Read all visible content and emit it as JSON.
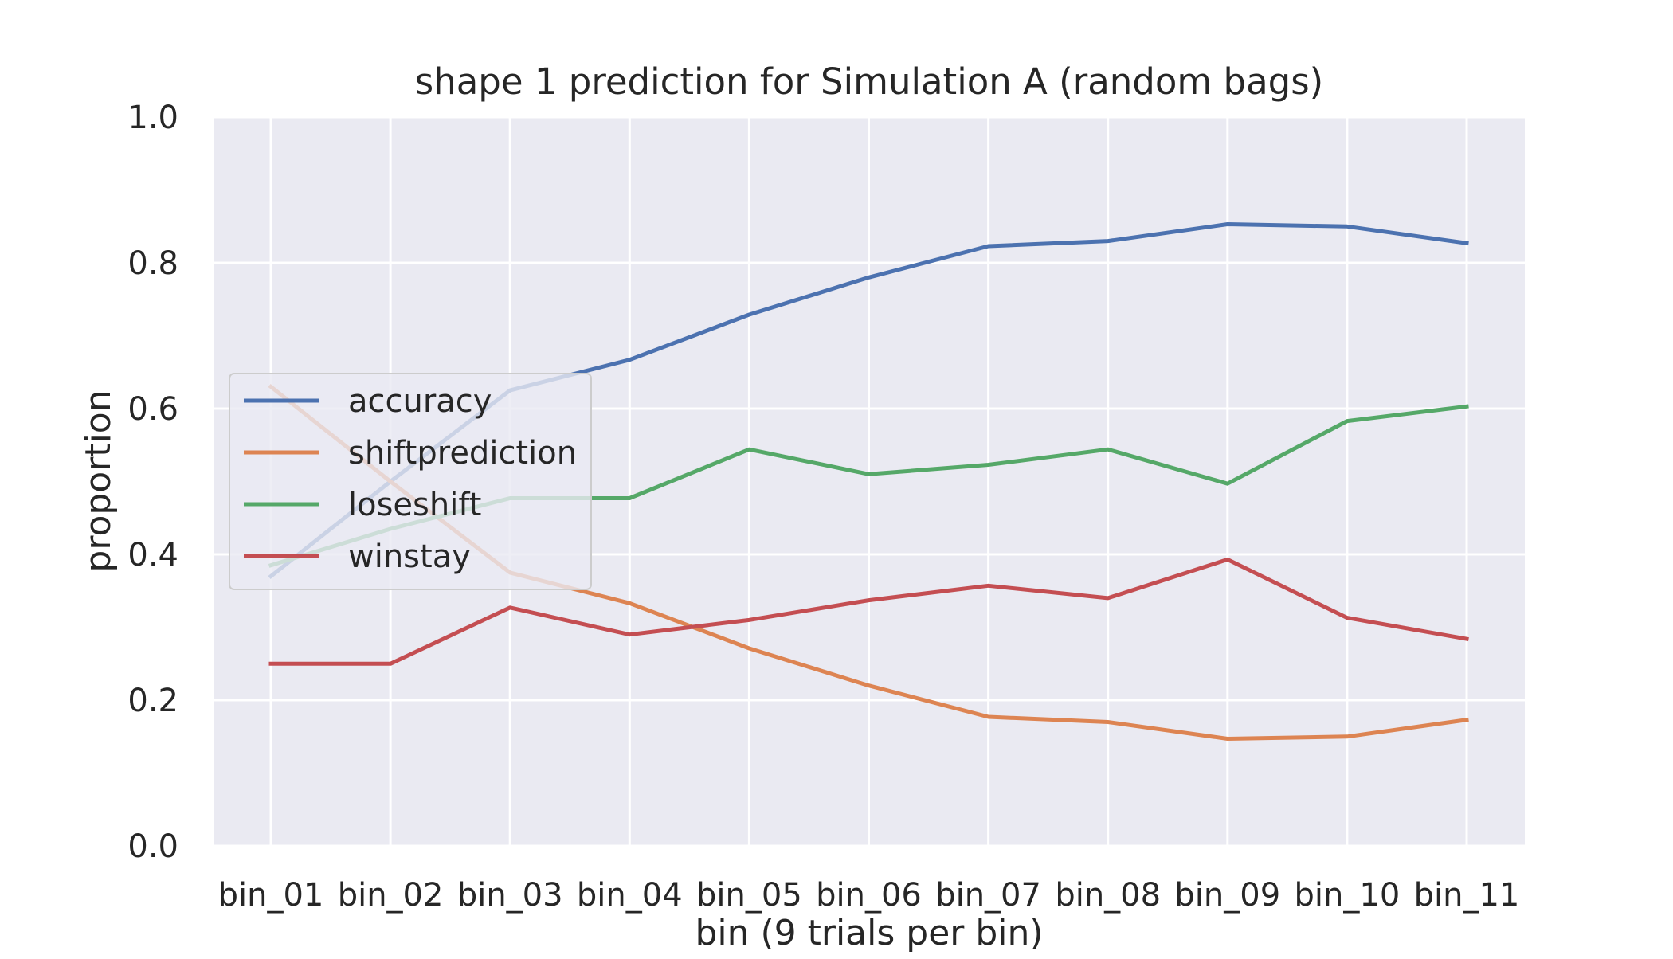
{
  "chart_data": {
    "type": "line",
    "title": "shape 1 prediction for Simulation A (random bags)",
    "xlabel": "bin (9 trials per bin)",
    "ylabel": "proportion",
    "categories": [
      "bin_01",
      "bin_02",
      "bin_03",
      "bin_04",
      "bin_05",
      "bin_06",
      "bin_07",
      "bin_08",
      "bin_09",
      "bin_10",
      "bin_11"
    ],
    "ylim": [
      0,
      1
    ],
    "yticks": [
      "0.0",
      "0.2",
      "0.4",
      "0.6",
      "0.8",
      "1.0"
    ],
    "grid": true,
    "legend_position": "center-left",
    "series": [
      {
        "name": "accuracy",
        "color": "#4c72b0",
        "values": [
          0.37,
          0.5,
          0.625,
          0.667,
          0.729,
          0.78,
          0.823,
          0.83,
          0.853,
          0.85,
          0.827
        ]
      },
      {
        "name": "shiftprediction",
        "color": "#dd8452",
        "values": [
          0.63,
          0.5,
          0.375,
          0.333,
          0.271,
          0.22,
          0.177,
          0.17,
          0.147,
          0.15,
          0.173
        ]
      },
      {
        "name": "loseshift",
        "color": "#55a868",
        "values": [
          0.385,
          0.435,
          0.477,
          0.477,
          0.544,
          0.51,
          0.523,
          0.544,
          0.497,
          0.583,
          0.603
        ]
      },
      {
        "name": "winstay",
        "color": "#c44e52",
        "values": [
          0.25,
          0.25,
          0.327,
          0.29,
          0.31,
          0.337,
          0.357,
          0.34,
          0.393,
          0.313,
          0.284
        ]
      }
    ]
  }
}
